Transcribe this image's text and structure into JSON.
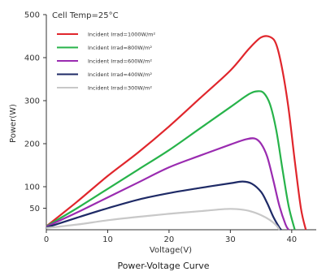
{
  "chart_data": {
    "type": "line",
    "title": "Power-Voltage Curve",
    "xlabel": "Voltage(V)",
    "ylabel": "Power(W)",
    "annotation": "Cell Temp=25°C",
    "xlim": [
      0,
      44
    ],
    "ylim": [
      0,
      500
    ],
    "x_ticks": [
      "0",
      "10",
      "20",
      "30",
      "40"
    ],
    "y_ticks": [
      "50",
      "100",
      "200",
      "300",
      "400",
      "500"
    ],
    "grid": false,
    "legend_position": "top-left",
    "series": [
      {
        "name": "Incident Irrad=1000W/m²",
        "color": "#e0262c",
        "points": [
          [
            0,
            8
          ],
          [
            5,
            65
          ],
          [
            10,
            125
          ],
          [
            15,
            180
          ],
          [
            20,
            240
          ],
          [
            25,
            305
          ],
          [
            30,
            370
          ],
          [
            33,
            420
          ],
          [
            35,
            447
          ],
          [
            36.5,
            448
          ],
          [
            37.5,
            430
          ],
          [
            38.5,
            370
          ],
          [
            39.5,
            280
          ],
          [
            40.5,
            160
          ],
          [
            41.5,
            50
          ],
          [
            42.3,
            0
          ]
        ]
      },
      {
        "name": "Incident Irrad=800W/m²",
        "color": "#27b34a",
        "points": [
          [
            0,
            8
          ],
          [
            5,
            50
          ],
          [
            10,
            95
          ],
          [
            15,
            140
          ],
          [
            20,
            185
          ],
          [
            25,
            235
          ],
          [
            30,
            285
          ],
          [
            33,
            315
          ],
          [
            34.5,
            322
          ],
          [
            35.5,
            317
          ],
          [
            36.5,
            290
          ],
          [
            37.5,
            230
          ],
          [
            38.5,
            140
          ],
          [
            39.5,
            55
          ],
          [
            40.5,
            0
          ]
        ]
      },
      {
        "name": "Incident Irrad=600W/m²",
        "color": "#9a2bb0",
        "points": [
          [
            0,
            7
          ],
          [
            5,
            40
          ],
          [
            10,
            75
          ],
          [
            15,
            110
          ],
          [
            20,
            145
          ],
          [
            25,
            172
          ],
          [
            30,
            198
          ],
          [
            32.5,
            210
          ],
          [
            34,
            212
          ],
          [
            35,
            200
          ],
          [
            36,
            170
          ],
          [
            37,
            115
          ],
          [
            38,
            55
          ],
          [
            39,
            12
          ],
          [
            39.5,
            0
          ]
        ]
      },
      {
        "name": "Incident Irrad=400W/m²",
        "color": "#1e2a66",
        "points": [
          [
            0,
            5
          ],
          [
            5,
            28
          ],
          [
            10,
            50
          ],
          [
            15,
            70
          ],
          [
            20,
            85
          ],
          [
            25,
            97
          ],
          [
            30,
            108
          ],
          [
            32,
            112
          ],
          [
            33.5,
            107
          ],
          [
            35,
            88
          ],
          [
            36,
            62
          ],
          [
            37,
            30
          ],
          [
            38,
            5
          ],
          [
            38.3,
            0
          ]
        ]
      },
      {
        "name": "Incident Irrad=300W/m²",
        "color": "#c8c8c8",
        "points": [
          [
            0,
            4
          ],
          [
            5,
            12
          ],
          [
            10,
            22
          ],
          [
            15,
            30
          ],
          [
            20,
            37
          ],
          [
            25,
            43
          ],
          [
            29,
            48
          ],
          [
            31,
            48
          ],
          [
            33,
            44
          ],
          [
            35,
            34
          ],
          [
            36.5,
            22
          ],
          [
            37.5,
            10
          ],
          [
            38,
            0
          ]
        ]
      }
    ]
  }
}
